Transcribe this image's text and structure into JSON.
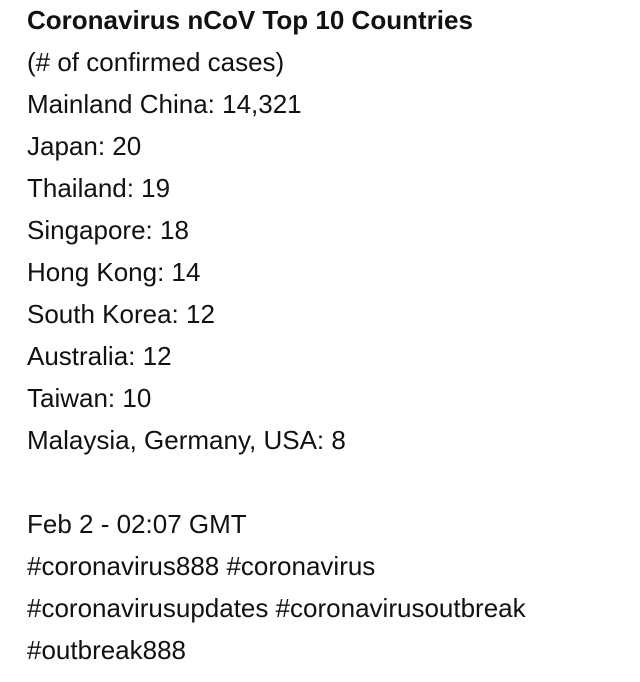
{
  "title": "Coronavirus nCoV Top 10 Countries",
  "subtitle": "(# of confirmed cases)",
  "countries": [
    "Mainland China: 14,321",
    "Japan: 20",
    "Thailand: 19",
    "Singapore: 18",
    "Hong Kong: 14",
    "South Korea: 12",
    "Australia: 12",
    "Taiwan: 10",
    "Malaysia, Germany, USA: 8"
  ],
  "timestamp": "Feb 2 - 02:07 GMT",
  "hashtags": [
    "#coronavirus888 #coronavirus",
    "#coronavirusupdates #coronavirusoutbreak",
    "#outbreak888"
  ]
}
